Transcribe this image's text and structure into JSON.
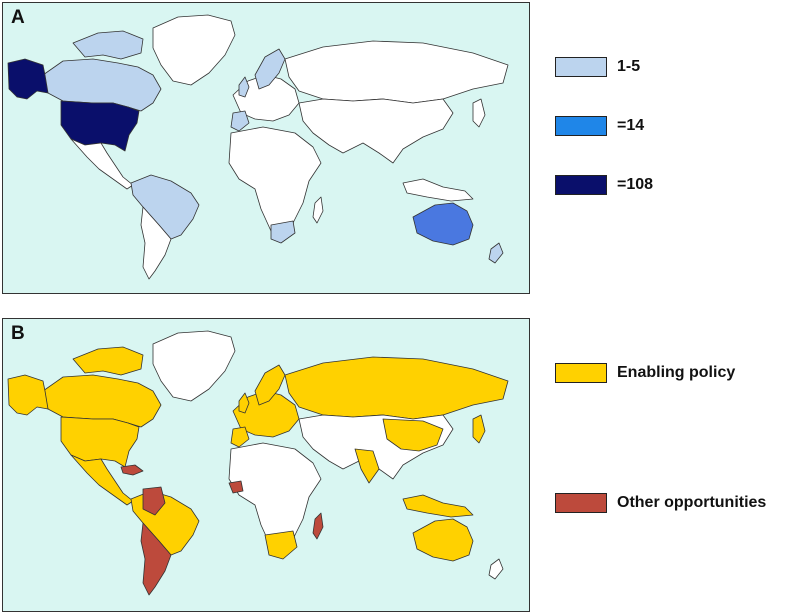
{
  "panels": [
    {
      "letter": "A",
      "legend": [
        {
          "label": "1-5",
          "color": "#bcd4ee"
        },
        {
          "label": "=14",
          "color": "#1f86e8"
        },
        {
          "label": "=108",
          "color": "#0a0f6b"
        }
      ]
    },
    {
      "letter": "B",
      "legend": [
        {
          "label": "Enabling policy",
          "color": "#ffd100"
        },
        {
          "label": "Other opportunities",
          "color": "#bd4a3c"
        }
      ]
    }
  ],
  "colors": {
    "ocean": "#d9f6f2",
    "no_data": "#ffffff",
    "light": "#bcd4ee",
    "australia_a": "#4a78e0",
    "usa_a": "#0a0f6b",
    "yellow": "#ffd100",
    "red": "#bd4a3c"
  }
}
